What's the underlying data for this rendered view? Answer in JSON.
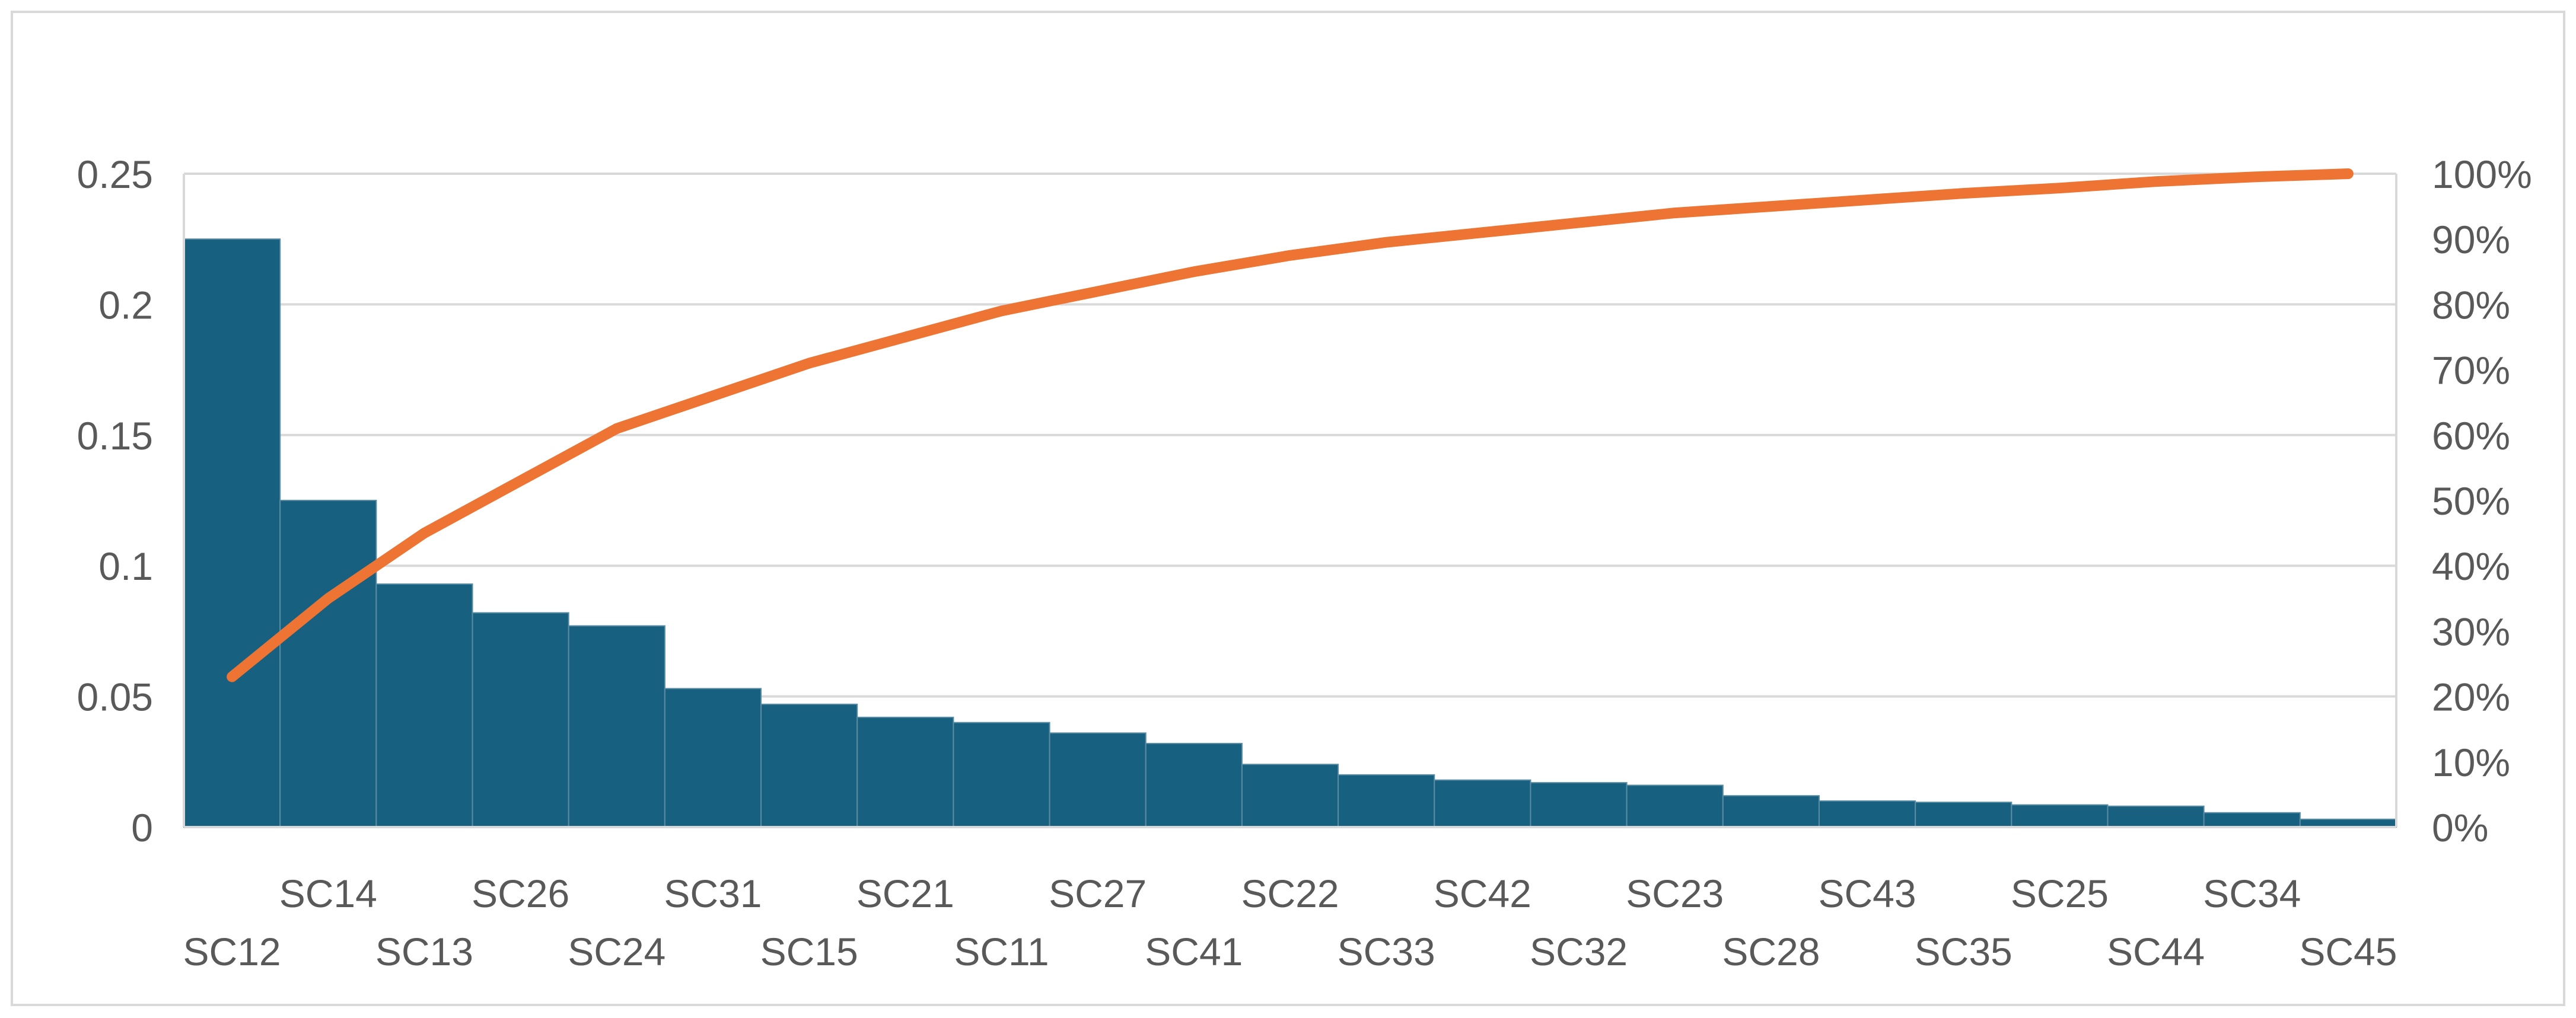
{
  "chart_data": {
    "type": "bar",
    "subtype": "pareto",
    "title": "",
    "xlabel": "",
    "ylabel": "",
    "categories": [
      "SC12",
      "SC14",
      "SC13",
      "SC26",
      "SC24",
      "SC31",
      "SC15",
      "SC21",
      "SC11",
      "SC27",
      "SC41",
      "SC22",
      "SC33",
      "SC42",
      "SC32",
      "SC23",
      "SC28",
      "SC43",
      "SC35",
      "SC25",
      "SC44",
      "SC34",
      "SC45"
    ],
    "series": [
      {
        "type": "bar",
        "values": [
          0.225,
          0.125,
          0.093,
          0.082,
          0.077,
          0.053,
          0.047,
          0.042,
          0.04,
          0.036,
          0.032,
          0.024,
          0.02,
          0.018,
          0.017,
          0.016,
          0.012,
          0.01,
          0.0095,
          0.0085,
          0.008,
          0.0055,
          0.003
        ],
        "color": "#17607f",
        "axis": "left"
      },
      {
        "type": "line",
        "values": [
          0.23,
          0.35,
          0.45,
          0.53,
          0.61,
          0.66,
          0.71,
          0.75,
          0.79,
          0.82,
          0.85,
          0.875,
          0.895,
          0.91,
          0.925,
          0.94,
          0.95,
          0.96,
          0.97,
          0.978,
          0.988,
          0.995,
          1.0
        ],
        "color": "#ed7433",
        "axis": "right"
      }
    ],
    "ylim": [
      0,
      0.25
    ],
    "y_ticks": [
      "0",
      "0.05",
      "0.1",
      "0.15",
      "0.2",
      "0.25"
    ],
    "y2lim": [
      0,
      1.0
    ],
    "y2_ticks": [
      "0%",
      "10%",
      "20%",
      "30%",
      "40%",
      "50%",
      "60%",
      "70%",
      "80%",
      "90%",
      "100%"
    ],
    "grid": true,
    "legend": "none"
  }
}
